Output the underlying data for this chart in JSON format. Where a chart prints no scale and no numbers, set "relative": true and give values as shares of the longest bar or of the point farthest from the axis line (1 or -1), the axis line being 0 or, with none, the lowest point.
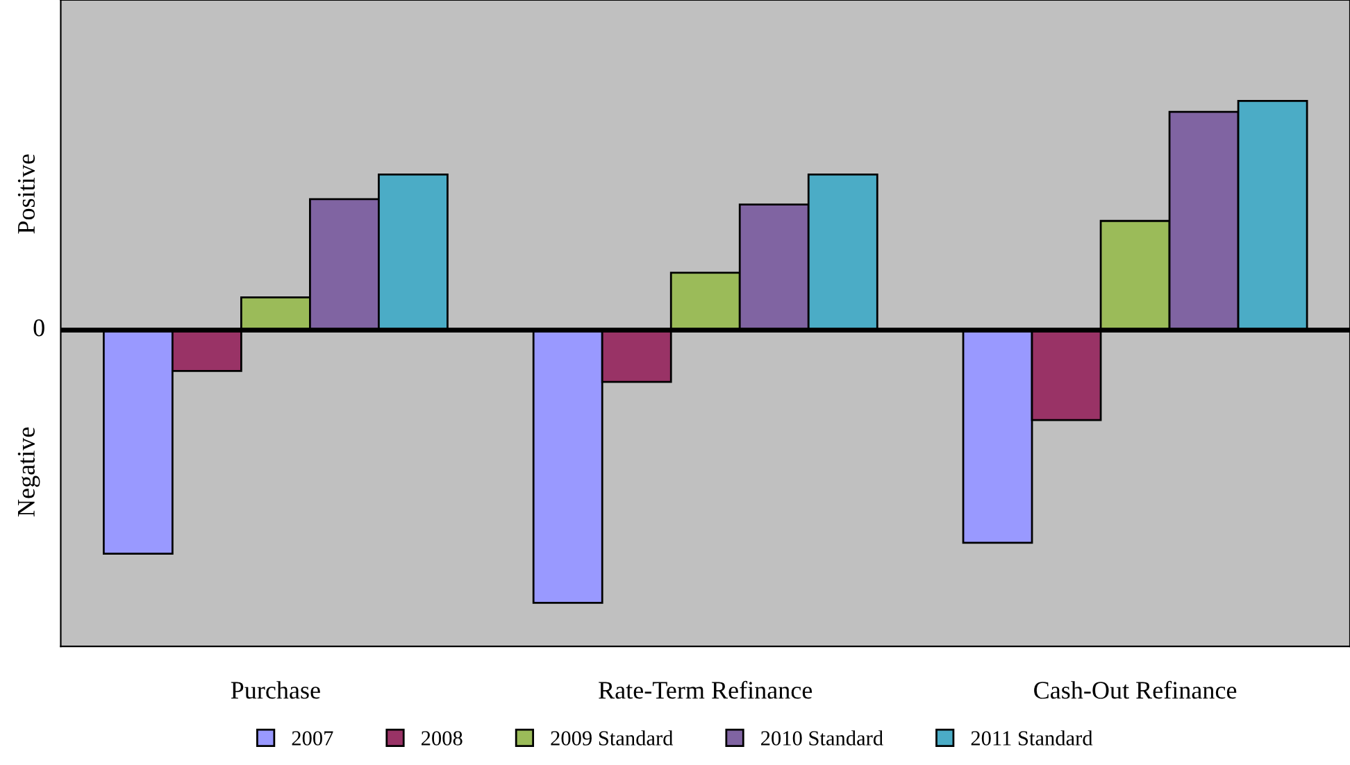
{
  "chart_data": {
    "type": "bar",
    "relative": true,
    "categories": [
      "Purchase",
      "Rate-Term Refinance",
      "Cash-Out Refinance"
    ],
    "series": [
      {
        "name": "2007",
        "color": "#9999ff",
        "values": [
          -0.82,
          -1,
          -0.78
        ]
      },
      {
        "name": "2008",
        "color": "#993366",
        "values": [
          -0.15,
          -0.19,
          -0.33
        ]
      },
      {
        "name": "2009 Standard",
        "color": "#9bbb59",
        "values": [
          0.12,
          0.21,
          0.4
        ]
      },
      {
        "name": "2010 Standard",
        "color": "#8064a2",
        "values": [
          0.48,
          0.46,
          0.8
        ]
      },
      {
        "name": "2011 Standard",
        "color": "#4bacc6",
        "values": [
          0.57,
          0.57,
          0.84
        ]
      }
    ],
    "ref_lines": [
      {
        "axis": "y",
        "value": 0,
        "label": "0",
        "color": "#000000"
      }
    ],
    "annotations": [
      "Positive",
      "Negative"
    ],
    "legend": "bottom",
    "grid": false
  }
}
